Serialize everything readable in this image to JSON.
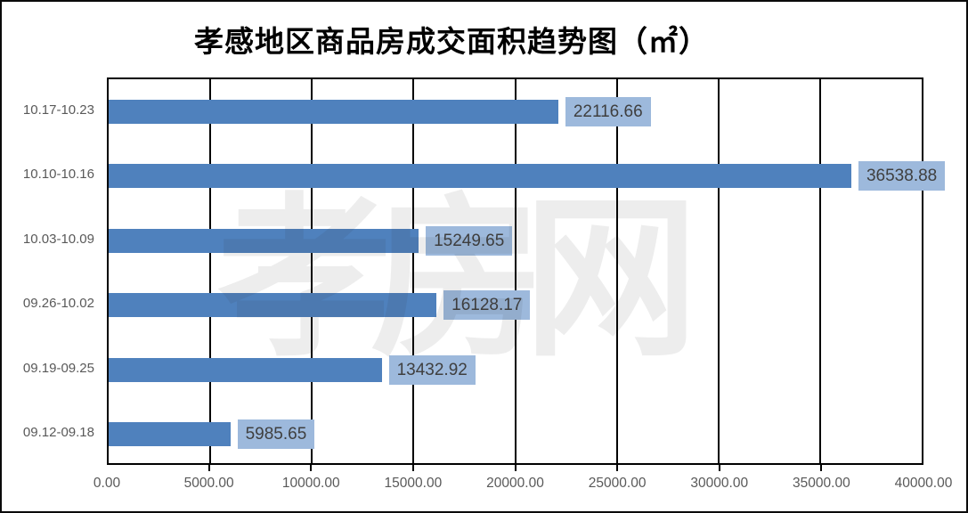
{
  "chart_data": {
    "type": "bar",
    "orientation": "horizontal",
    "title": "孝感地区商品房成交面积趋势图（㎡）",
    "watermark": "孝房网",
    "categories": [
      "10.17-10.23",
      "10.10-10.16",
      "10.03-10.09",
      "09.26-10.02",
      "09.19-09.25",
      "09.12-09.18"
    ],
    "values": [
      22116.66,
      36538.88,
      15249.65,
      16128.17,
      13432.92,
      5985.65
    ],
    "data_labels": [
      "22116.66",
      "36538.88",
      "15249.65",
      "16128.17",
      "13432.92",
      "5985.65"
    ],
    "x_ticks": [
      "0.00",
      "5000.00",
      "10000.00",
      "15000.00",
      "20000.00",
      "25000.00",
      "30000.00",
      "35000.00",
      "40000.00"
    ],
    "xlim": [
      0,
      40000
    ],
    "grid": true,
    "legend": false,
    "colors": {
      "bar": "#4f81bd",
      "data_label_bg": "#9db9dc",
      "data_label_text": "#3f3f3f",
      "gridline": "#000000",
      "axis_text": "#595959",
      "plot_border": "#000000"
    }
  }
}
